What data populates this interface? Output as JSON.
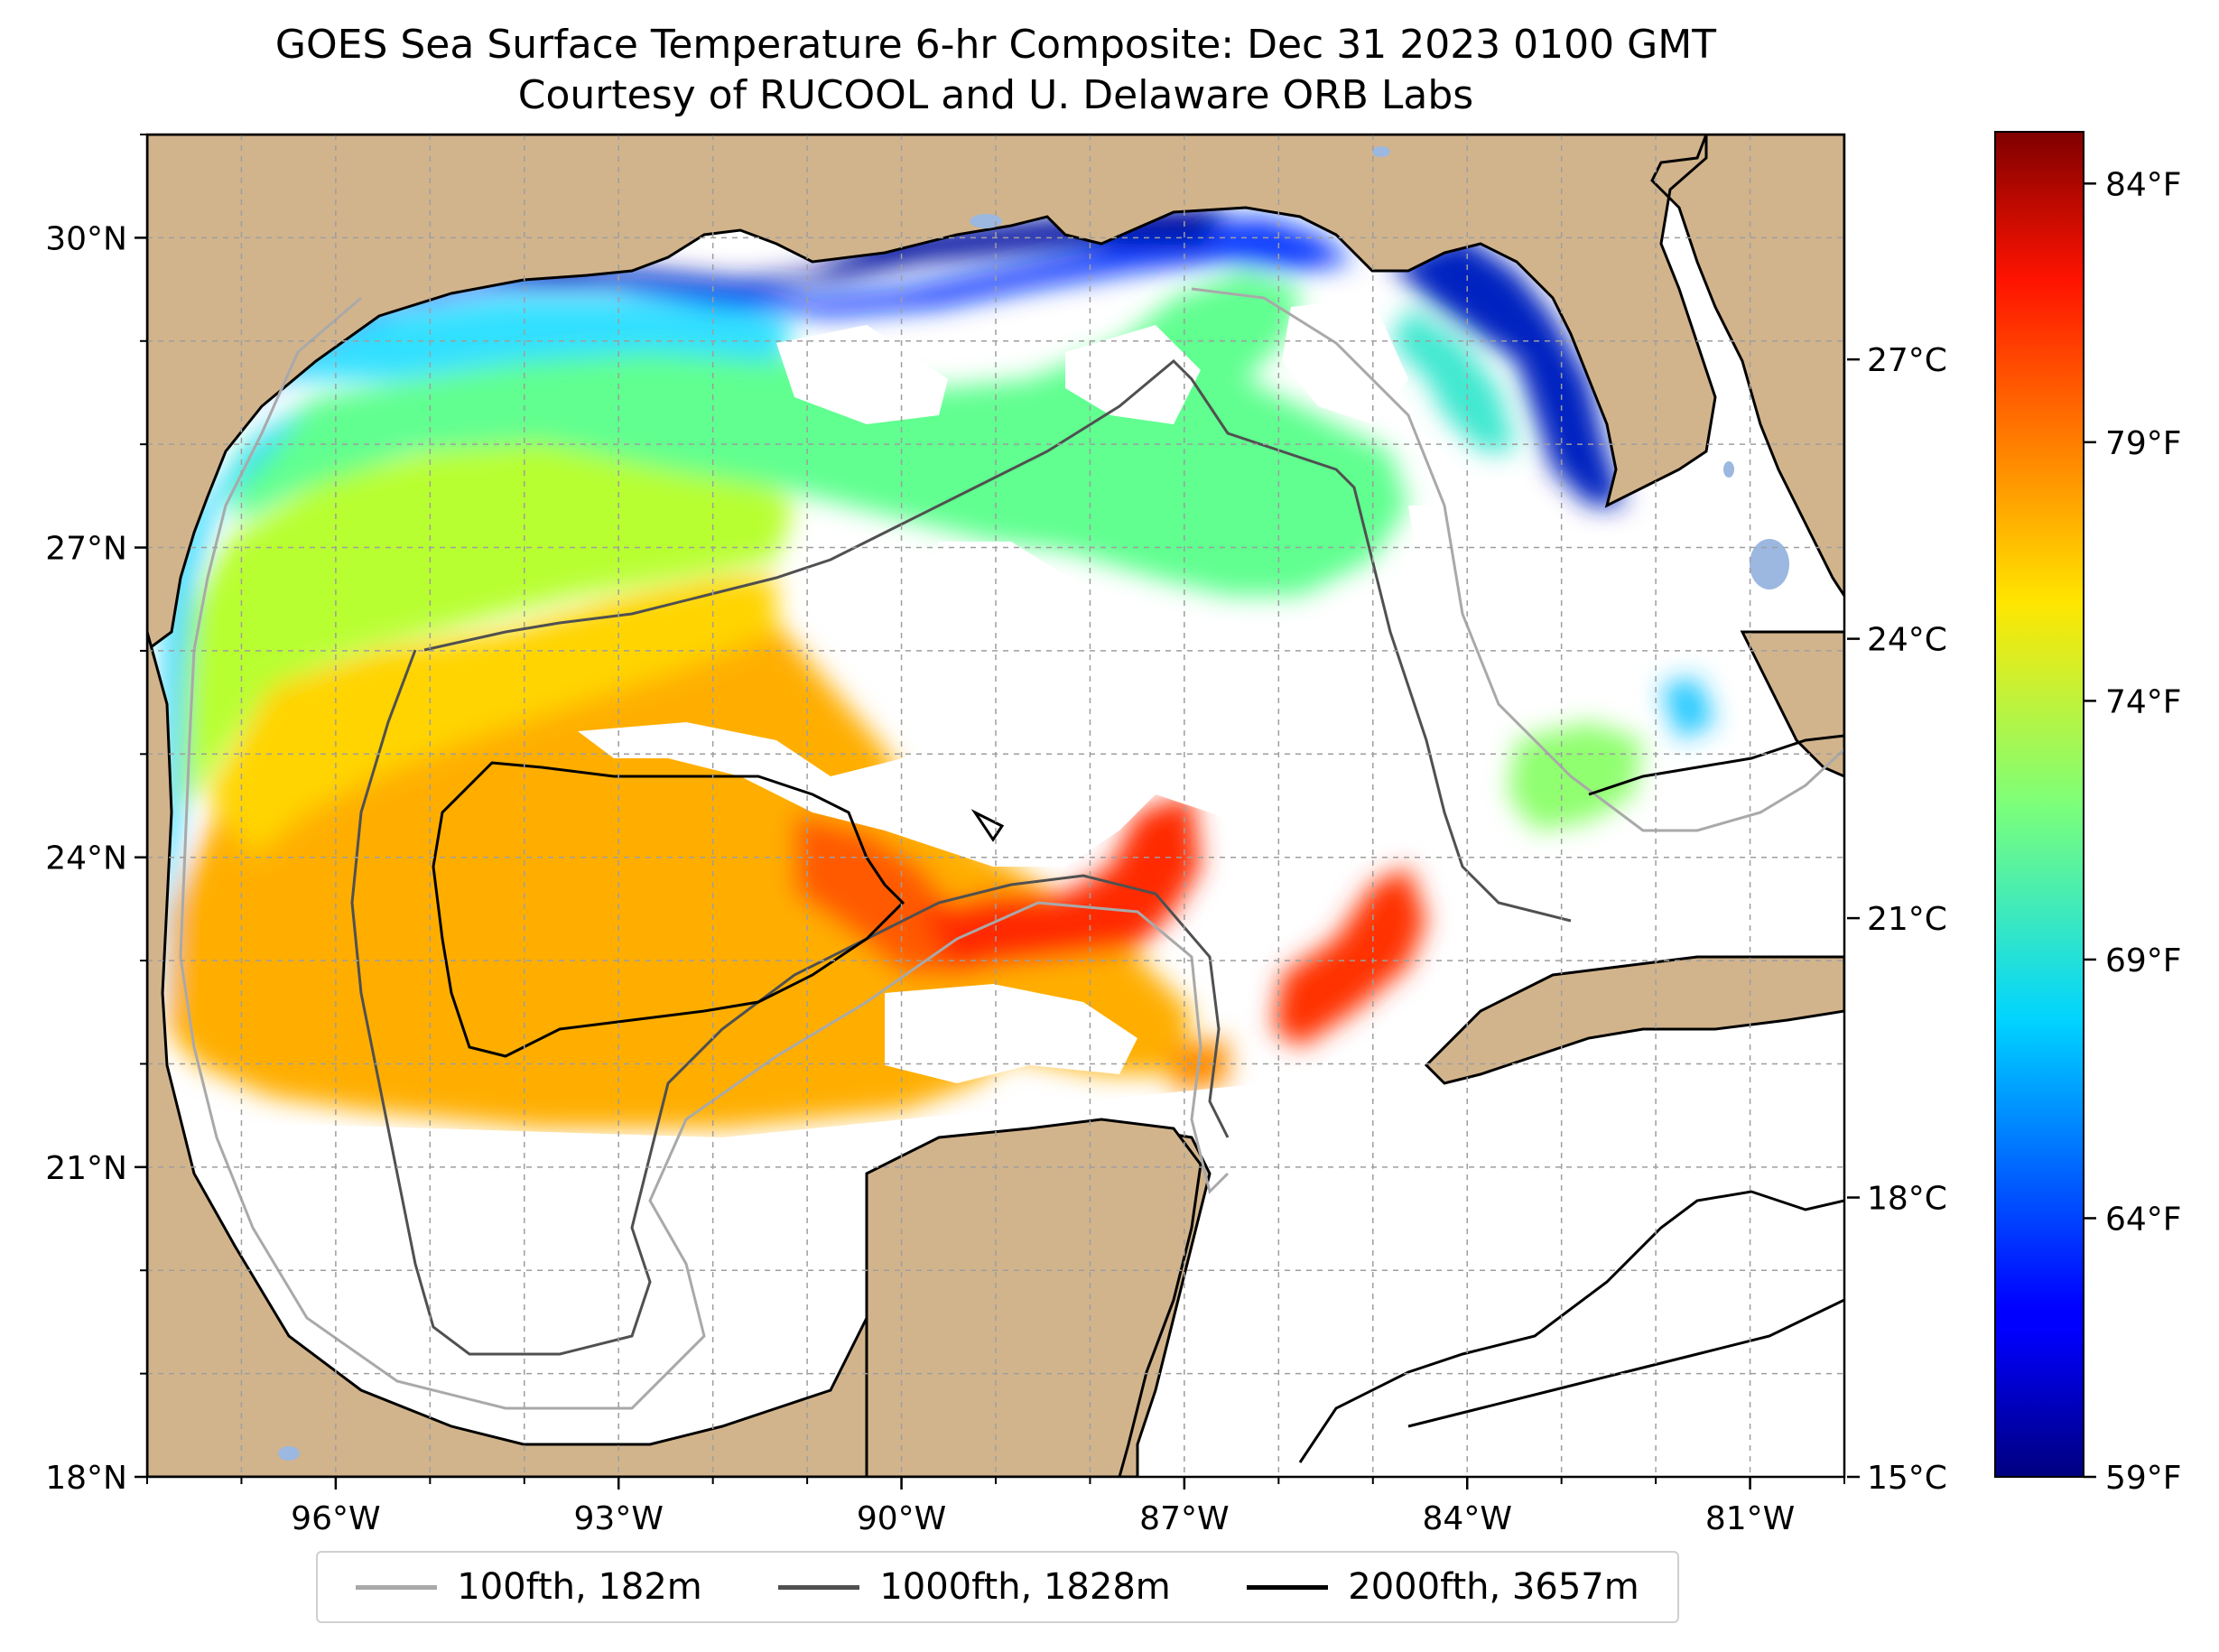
{
  "title": {
    "line1": "GOES Sea Surface Temperature 6-hr Composite: Dec 31 2023 0100 GMT",
    "line2": "Courtesy of RUCOOL and U. Delaware ORB Labs"
  },
  "map": {
    "extent": {
      "lon": [
        -98.0,
        -80.0
      ],
      "lat": [
        18.0,
        31.0
      ]
    },
    "lat_ticks": [
      {
        "value": 18,
        "label": "18°N"
      },
      {
        "value": 21,
        "label": "21°N"
      },
      {
        "value": 24,
        "label": "24°N"
      },
      {
        "value": 27,
        "label": "27°N"
      },
      {
        "value": 30,
        "label": "30°N"
      }
    ],
    "lon_ticks": [
      {
        "value": -96,
        "label": "96°W"
      },
      {
        "value": -93,
        "label": "93°W"
      },
      {
        "value": -90,
        "label": "90°W"
      },
      {
        "value": -87,
        "label": "87°W"
      },
      {
        "value": -84,
        "label": "84°W"
      },
      {
        "value": -81,
        "label": "81°W"
      }
    ],
    "grid": true,
    "land_color": "#d2b48c",
    "water_body_color": "#9cb8e0",
    "colormap": "jet"
  },
  "colorbar": {
    "celsius_ticks": [
      {
        "value": 15,
        "label": "15°C"
      },
      {
        "value": 18,
        "label": "18°C"
      },
      {
        "value": 21,
        "label": "21°C"
      },
      {
        "value": 24,
        "label": "24°C"
      },
      {
        "value": 27,
        "label": "27°C"
      }
    ],
    "fahrenheit_ticks": [
      {
        "value": 59,
        "label": "59°F"
      },
      {
        "value": 64,
        "label": "64°F"
      },
      {
        "value": 69,
        "label": "69°F"
      },
      {
        "value": 74,
        "label": "74°F"
      },
      {
        "value": 79,
        "label": "79°F"
      },
      {
        "value": 84,
        "label": "84°F"
      }
    ],
    "range_f": [
      59,
      85
    ]
  },
  "legend": [
    {
      "label": "100fth, 182m",
      "color": "#a9a9a9"
    },
    {
      "label": "1000fth, 1828m",
      "color": "#505050"
    },
    {
      "label": "2000fth, 3657m",
      "color": "#000000"
    }
  ]
}
